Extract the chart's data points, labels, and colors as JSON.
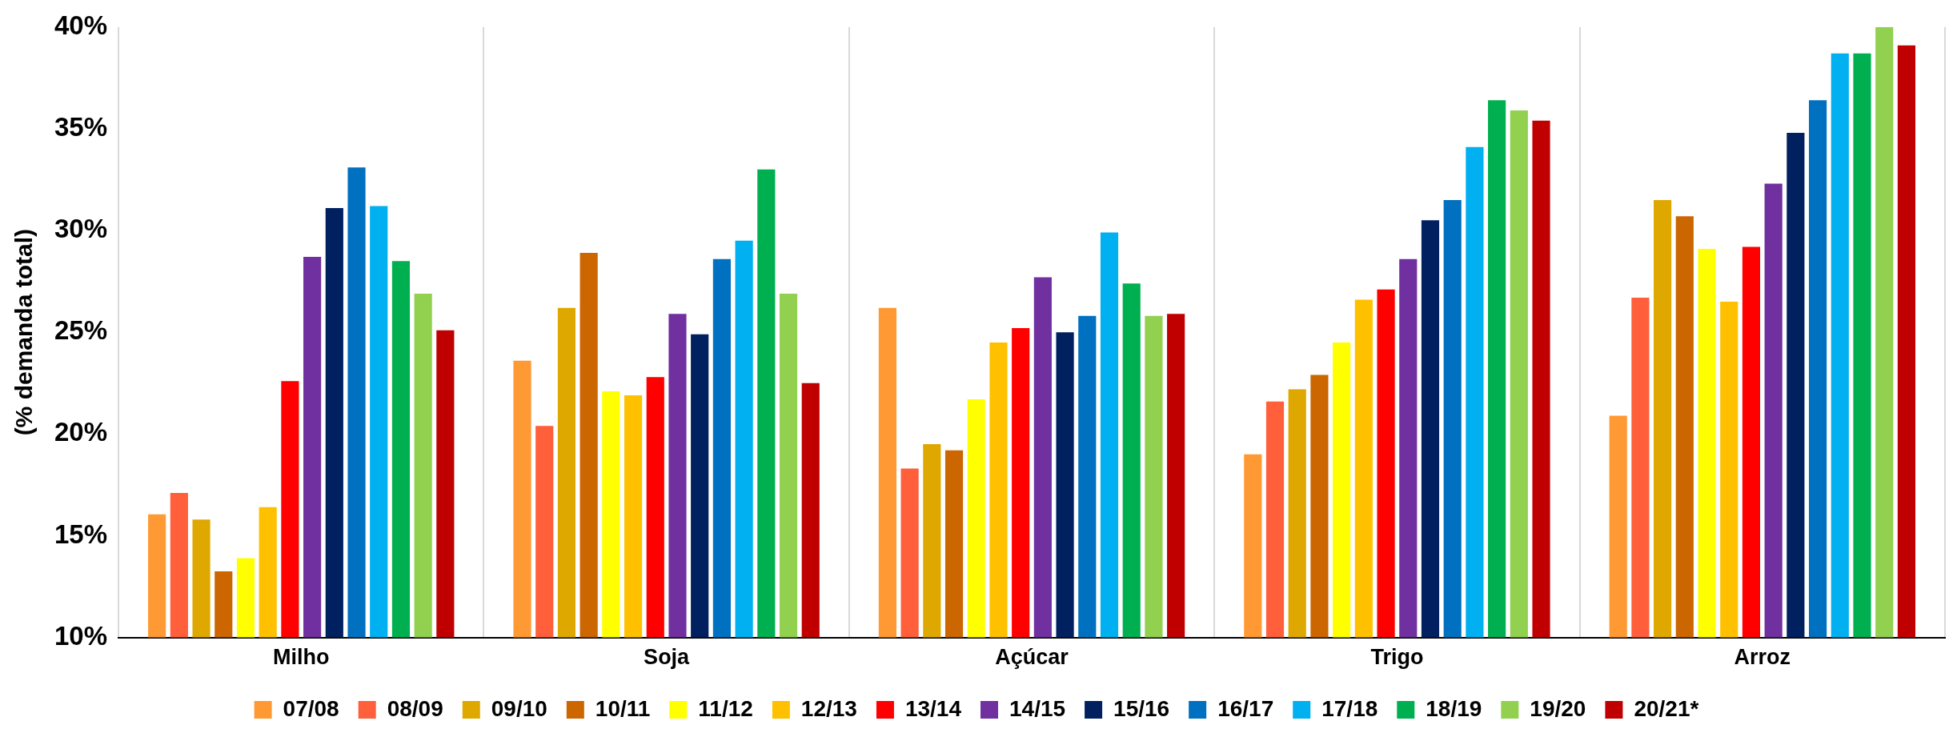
{
  "chart_data": {
    "type": "bar",
    "ylabel": "(% demanda total)",
    "categories": [
      "Milho",
      "Soja",
      "Açúcar",
      "Trigo",
      "Arroz"
    ],
    "ylim": [
      10,
      40
    ],
    "yticks": [
      {
        "value": 10,
        "label": "10%"
      },
      {
        "value": 15,
        "label": "15%"
      },
      {
        "value": 20,
        "label": "20%"
      },
      {
        "value": 25,
        "label": "25%"
      },
      {
        "value": 30,
        "label": "30%"
      },
      {
        "value": 35,
        "label": "35%"
      },
      {
        "value": 40,
        "label": "40%"
      }
    ],
    "grid": "x",
    "legend": "bottom",
    "series": [
      {
        "name": "07/08",
        "color": "#ff9933",
        "values": [
          16.05,
          23.6,
          26.2,
          19.0,
          20.9
        ]
      },
      {
        "name": "08/09",
        "color": "#ff5f3a",
        "values": [
          17.1,
          20.4,
          18.3,
          21.6,
          26.7
        ]
      },
      {
        "name": "09/10",
        "color": "#dfa800",
        "values": [
          15.8,
          26.2,
          19.5,
          22.2,
          31.5
        ]
      },
      {
        "name": "10/11",
        "color": "#cc6600",
        "values": [
          13.25,
          28.9,
          19.2,
          22.9,
          30.7
        ]
      },
      {
        "name": "11/12",
        "color": "#ffff00",
        "values": [
          13.9,
          22.1,
          21.7,
          24.5,
          29.1
        ]
      },
      {
        "name": "12/13",
        "color": "#ffc000",
        "values": [
          16.4,
          21.9,
          24.5,
          26.6,
          26.5
        ]
      },
      {
        "name": "13/14",
        "color": "#ff0000",
        "values": [
          22.6,
          22.8,
          25.2,
          27.1,
          29.2
        ]
      },
      {
        "name": "14/15",
        "color": "#7030a0",
        "values": [
          28.7,
          25.9,
          27.7,
          28.6,
          32.3
        ]
      },
      {
        "name": "15/16",
        "color": "#002060",
        "values": [
          31.1,
          24.9,
          25.0,
          30.5,
          34.8
        ]
      },
      {
        "name": "16/17",
        "color": "#0070c0",
        "values": [
          33.1,
          28.6,
          25.8,
          31.5,
          36.4
        ]
      },
      {
        "name": "17/18",
        "color": "#00b0f0",
        "values": [
          31.2,
          29.5,
          29.9,
          34.1,
          38.7
        ]
      },
      {
        "name": "18/19",
        "color": "#00b050",
        "values": [
          28.5,
          33.0,
          27.4,
          36.4,
          38.7
        ]
      },
      {
        "name": "19/20",
        "color": "#92d050",
        "values": [
          26.9,
          26.9,
          25.8,
          35.9,
          40.0
        ]
      },
      {
        "name": "20/21*",
        "color": "#c00000",
        "values": [
          25.1,
          22.5,
          25.9,
          35.4,
          39.1
        ]
      }
    ]
  }
}
